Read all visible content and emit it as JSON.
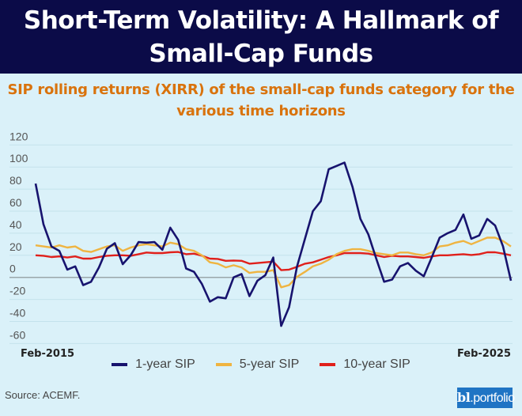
{
  "title_lines": [
    "Short-Term Volatility: A Hallmark of",
    "Small-Cap Funds"
  ],
  "subtitle_lines": [
    "SIP rolling returns (XIRR) of the small-cap funds category for the",
    "various time horizons"
  ],
  "source": "Source: ACEMF.",
  "logo": {
    "bold": "bl",
    "rest": ".portfolio",
    "color": "#1f74c4"
  },
  "chart_data": {
    "type": "line",
    "title": "SIP rolling returns (XIRR) of the small-cap funds category for the various time horizons",
    "x_tick_labels": [
      "Feb-2015",
      "Feb-2025"
    ],
    "y_ticks": [
      120,
      100,
      80,
      60,
      40,
      20,
      0,
      -20,
      -40,
      -60
    ],
    "ylim": [
      -60,
      120
    ],
    "grid": true,
    "legend_placement": "bottom",
    "x": [
      "Feb-2015",
      "Apr-2015",
      "Jun-2015",
      "Aug-2015",
      "Oct-2015",
      "Dec-2015",
      "Feb-2016",
      "Apr-2016",
      "Jun-2016",
      "Aug-2016",
      "Oct-2016",
      "Dec-2016",
      "Feb-2017",
      "Apr-2017",
      "Jun-2017",
      "Aug-2017",
      "Oct-2017",
      "Dec-2017",
      "Feb-2018",
      "Apr-2018",
      "Jun-2018",
      "Aug-2018",
      "Oct-2018",
      "Dec-2018",
      "Feb-2019",
      "Apr-2019",
      "Jun-2019",
      "Aug-2019",
      "Oct-2019",
      "Dec-2019",
      "Feb-2020",
      "Apr-2020",
      "Jun-2020",
      "Aug-2020",
      "Oct-2020",
      "Dec-2020",
      "Feb-2021",
      "Apr-2021",
      "Jun-2021",
      "Aug-2021",
      "Oct-2021",
      "Dec-2021",
      "Feb-2022",
      "Apr-2022",
      "Jun-2022",
      "Aug-2022",
      "Oct-2022",
      "Dec-2022",
      "Feb-2023",
      "Apr-2023",
      "Jun-2023",
      "Aug-2023",
      "Oct-2023",
      "Dec-2023",
      "Feb-2024",
      "Apr-2024",
      "Jun-2024",
      "Aug-2024",
      "Oct-2024",
      "Dec-2024",
      "Feb-2025"
    ],
    "series": [
      {
        "name": "1-year SIP",
        "color": "#17136e",
        "values": [
          85,
          48,
          28,
          24,
          7,
          10,
          -7,
          -4,
          9,
          26,
          31,
          12,
          20,
          32,
          31.5,
          32,
          25,
          45,
          34,
          8,
          5,
          -6,
          -22,
          -18,
          -19,
          0,
          3,
          -17,
          -3,
          2,
          18,
          -44,
          -27,
          10,
          35,
          60,
          69,
          98,
          101,
          104,
          82,
          53,
          39,
          17,
          -4,
          -2,
          10,
          13,
          6,
          1,
          18,
          36,
          40,
          43,
          57,
          35,
          38,
          53,
          47,
          28,
          -3
        ]
      },
      {
        "name": "5-year SIP",
        "color": "#efb441",
        "values": [
          29,
          28,
          27,
          29,
          27,
          28,
          24,
          23,
          25.5,
          28,
          29,
          24,
          27,
          29,
          30,
          29,
          28,
          31.5,
          30,
          25.5,
          24,
          20,
          13.6,
          12.4,
          9,
          11,
          9,
          4,
          5,
          5,
          6.5,
          -9,
          -7,
          0.5,
          5,
          10,
          12.4,
          16,
          21,
          24,
          25.5,
          25.5,
          24,
          22,
          21,
          20,
          22.5,
          22.5,
          21,
          20,
          22.5,
          28,
          29,
          31.5,
          33,
          30,
          33,
          36,
          36,
          33,
          28
        ]
      },
      {
        "name": "10-year SIP",
        "color": "#e0201b",
        "values": [
          20,
          19.6,
          18.4,
          19,
          18,
          19,
          17,
          17,
          18.4,
          19.6,
          20,
          20,
          19.6,
          21,
          22.5,
          22,
          22,
          22.7,
          23,
          21,
          21.5,
          19.6,
          17,
          16.7,
          15,
          15.3,
          15,
          12.4,
          13,
          13.6,
          14.3,
          6.5,
          7,
          9.5,
          12.4,
          13.6,
          16,
          18.4,
          20,
          22,
          22,
          22,
          21.5,
          20,
          18.4,
          19.6,
          19,
          19,
          18.4,
          17.7,
          19,
          20,
          20,
          20.5,
          21,
          20.3,
          21,
          22.7,
          22.7,
          21.5,
          20
        ]
      }
    ]
  }
}
